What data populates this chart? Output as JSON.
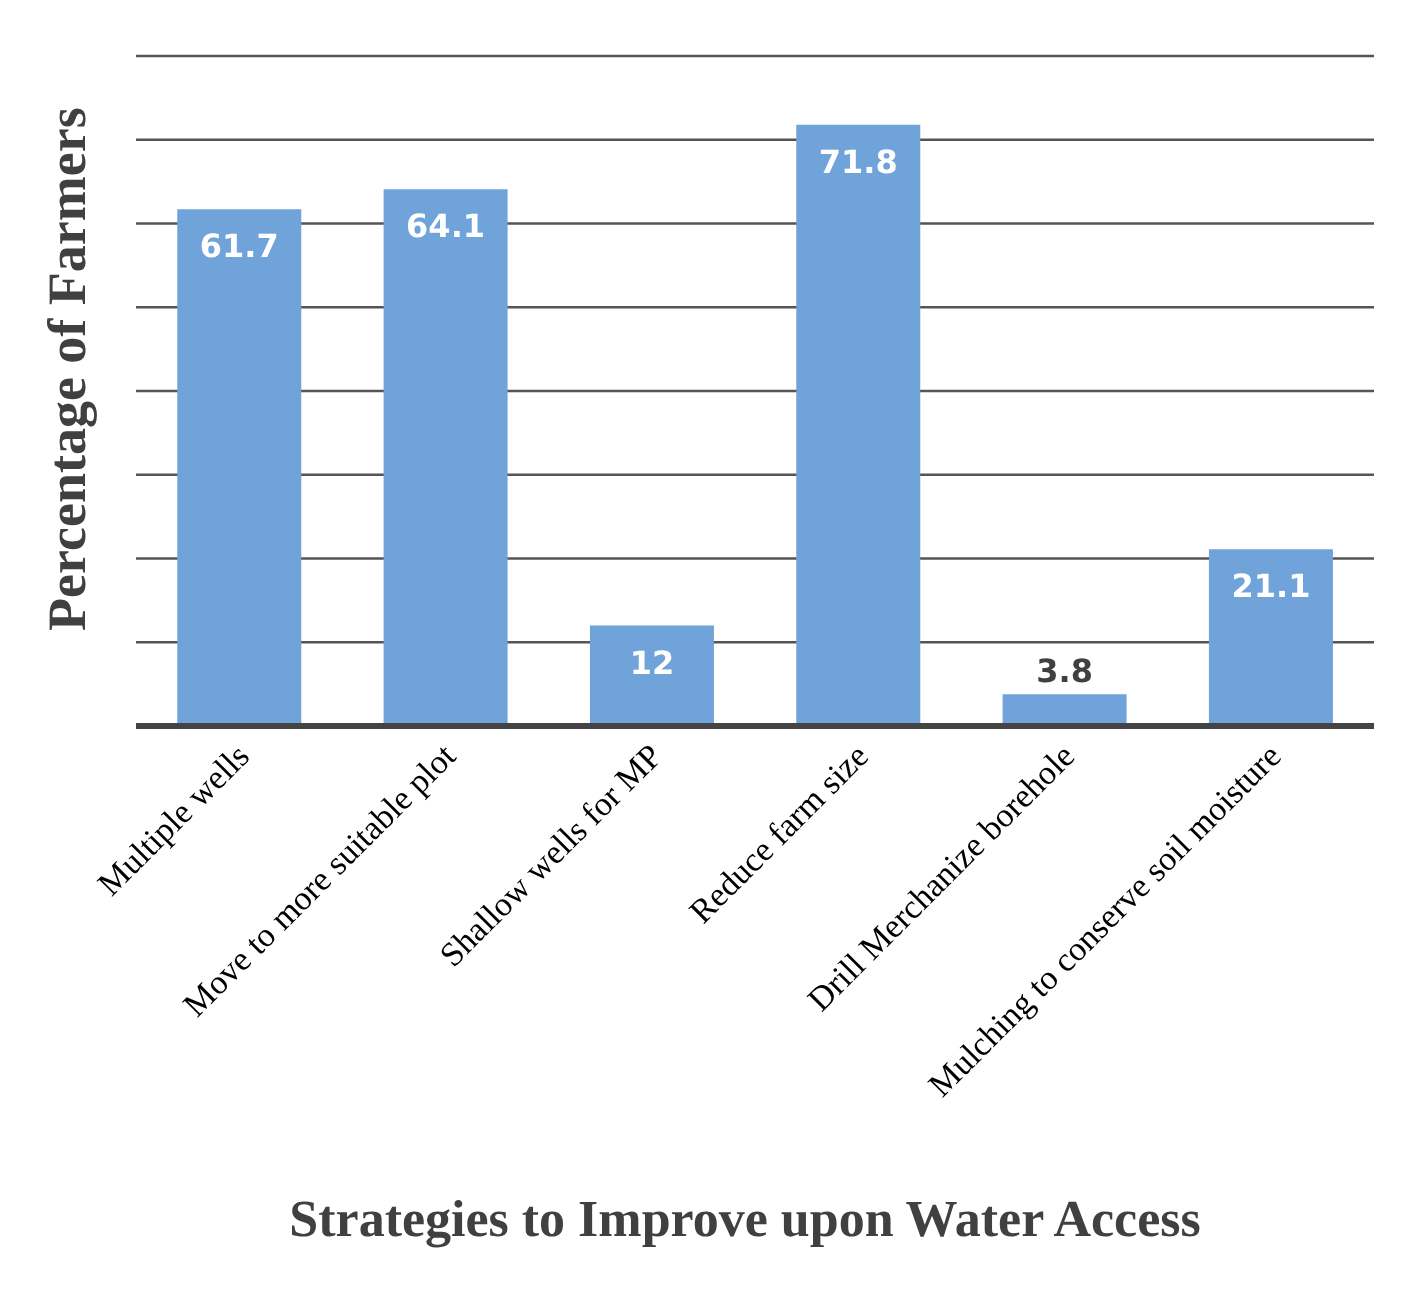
{
  "chart_data": {
    "type": "bar",
    "xlabel": "Strategies to Improve upon Water Access",
    "ylabel": "Percentage of Farmers",
    "categories": [
      "Multiple wells",
      "Move to more suitable plot",
      "Shallow wells for MP",
      "Reduce farm size",
      "Drill Merchanize borehole",
      "Mulching to conserve soil moisture"
    ],
    "values": [
      61.7,
      64.1,
      12,
      71.8,
      3.8,
      21.1
    ],
    "color": "#6fa3da",
    "ylim": [
      0,
      80
    ],
    "yticks": [
      {
        "value": 0,
        "label": null
      },
      {
        "value": 10,
        "label": null
      },
      {
        "value": 20,
        "label": null
      },
      {
        "value": 30,
        "label": null
      },
      {
        "value": 40,
        "label": null
      },
      {
        "value": 50,
        "label": null
      },
      {
        "value": 60,
        "label": null
      },
      {
        "value": 70,
        "label": null
      },
      {
        "value": 80,
        "label": null
      }
    ],
    "grid": "y",
    "tick_labels": "x",
    "data_labels": true
  }
}
